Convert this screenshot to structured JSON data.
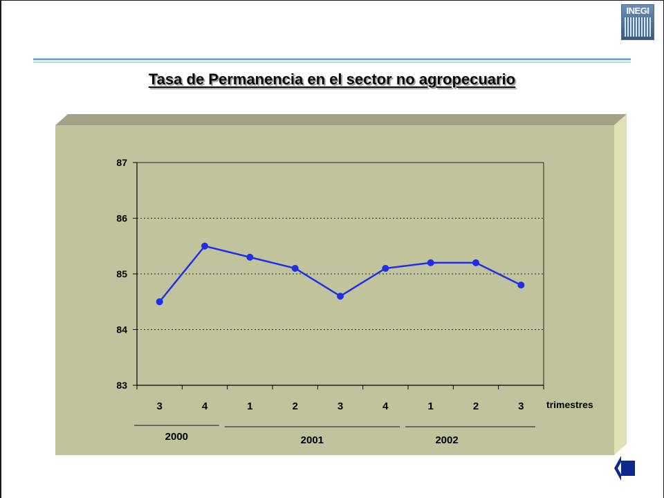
{
  "title": "Tasa de Permanencia en el sector no agropecuario",
  "logo_text": "INEGI",
  "icons": {
    "logo": "inegi-logo-icon",
    "back": "back-arrow-icon"
  },
  "colors": {
    "panel_front": "#c1c39d",
    "panel_top": "#a2a384",
    "panel_side": "#e1e1b8",
    "series": "#1f2ee8",
    "back_arrow": "#0d2a8a"
  },
  "chart_data": {
    "type": "line",
    "title": "Tasa de Permanencia en el sector no agropecuario",
    "xlabel": "trimestres",
    "ylabel": "",
    "categories": [
      "3",
      "4",
      "1",
      "2",
      "3",
      "4",
      "1",
      "2",
      "3"
    ],
    "values": [
      84.5,
      85.5,
      85.3,
      85.1,
      84.6,
      85.1,
      85.2,
      85.2,
      84.8
    ],
    "ylim": [
      83,
      87
    ],
    "yticks": [
      83,
      84,
      85,
      86,
      87
    ],
    "grid": "dotted horizontal",
    "years": [
      {
        "label": "2000",
        "from": 0,
        "to": 1
      },
      {
        "label": "2001",
        "from": 2,
        "to": 5
      },
      {
        "label": "2002",
        "from": 6,
        "to": 8
      }
    ]
  }
}
